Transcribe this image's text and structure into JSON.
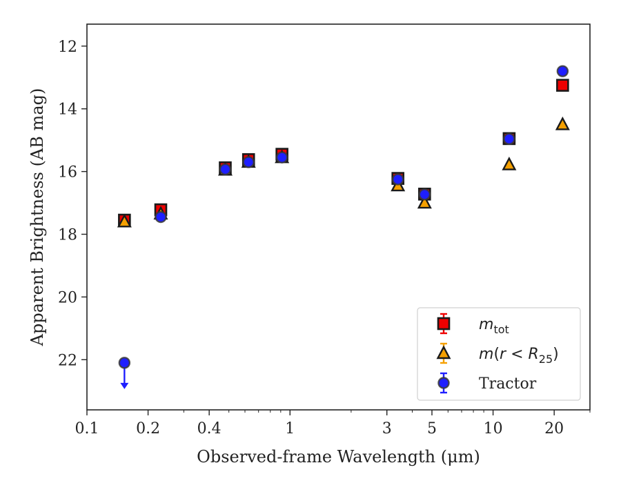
{
  "chart_data": {
    "type": "scatter",
    "xlabel": "Observed-frame Wavelength (μm)",
    "ylabel": "Apparent Brightness (AB mag)",
    "xscale": "log",
    "xlim": [
      0.1,
      30
    ],
    "ylim": [
      23.6,
      11.3
    ],
    "y_inverted": true,
    "x_ticks": [
      0.1,
      0.2,
      0.4,
      1,
      3,
      5,
      10,
      20
    ],
    "x_tick_labels": [
      "0.1",
      "0.2",
      "0.4",
      "1",
      "3",
      "5",
      "10",
      "20"
    ],
    "y_ticks": [
      12,
      14,
      16,
      18,
      20,
      22
    ],
    "y_tick_labels": [
      "12",
      "14",
      "16",
      "18",
      "20",
      "22"
    ],
    "grid": false,
    "legend_position": "lower-right",
    "series": [
      {
        "name": "m_tot",
        "legend_label": "mtot",
        "marker": "square",
        "color": "#ee0000",
        "points": [
          {
            "x": 0.153,
            "y": 17.55
          },
          {
            "x": 0.231,
            "y": 17.22
          },
          {
            "x": 0.48,
            "y": 15.88
          },
          {
            "x": 0.625,
            "y": 15.62
          },
          {
            "x": 0.913,
            "y": 15.45
          },
          {
            "x": 3.4,
            "y": 16.22
          },
          {
            "x": 4.6,
            "y": 16.72
          },
          {
            "x": 12.0,
            "y": 14.95
          },
          {
            "x": 22.0,
            "y": 13.25
          }
        ]
      },
      {
        "name": "m(r < R25)",
        "legend_label": "m(r < R25)",
        "marker": "triangle",
        "color": "#f5a000",
        "points": [
          {
            "x": 0.153,
            "y": 17.6
          },
          {
            "x": 0.231,
            "y": 17.35
          },
          {
            "x": 0.48,
            "y": 15.95
          },
          {
            "x": 0.625,
            "y": 15.7
          },
          {
            "x": 0.913,
            "y": 15.55
          },
          {
            "x": 3.4,
            "y": 16.45
          },
          {
            "x": 4.6,
            "y": 17.0
          },
          {
            "x": 12.0,
            "y": 15.78
          },
          {
            "x": 22.0,
            "y": 14.5
          }
        ]
      },
      {
        "name": "Tractor",
        "legend_label": "Tractor",
        "marker": "circle",
        "color": "#1f1fff",
        "points": [
          {
            "x": 0.153,
            "y": 22.1,
            "upper_limit": true
          },
          {
            "x": 0.231,
            "y": 17.45
          },
          {
            "x": 0.48,
            "y": 15.93
          },
          {
            "x": 0.625,
            "y": 15.7
          },
          {
            "x": 0.913,
            "y": 15.55
          },
          {
            "x": 3.4,
            "y": 16.25
          },
          {
            "x": 4.6,
            "y": 16.73
          },
          {
            "x": 12.0,
            "y": 14.96
          },
          {
            "x": 22.0,
            "y": 12.8
          }
        ]
      }
    ]
  }
}
